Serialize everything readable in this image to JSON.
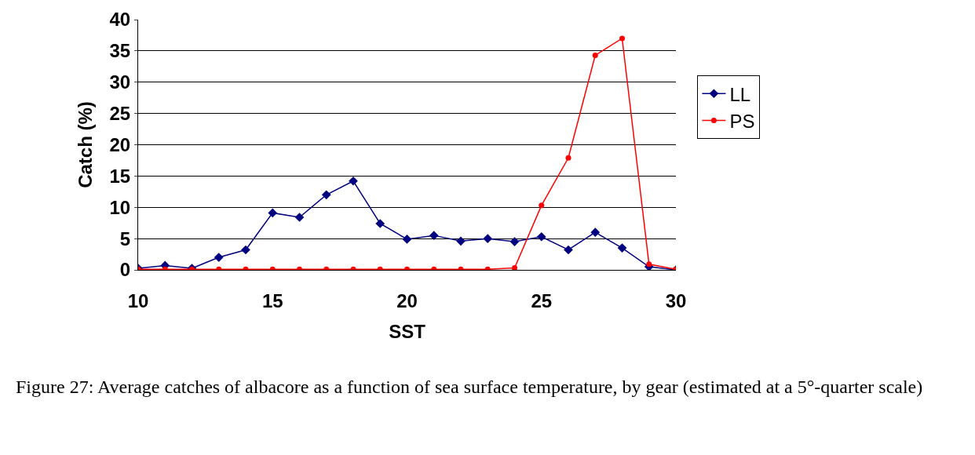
{
  "chart_data": {
    "type": "line",
    "xlabel": "SST",
    "ylabel": "Catch (%)",
    "x": [
      10,
      11,
      12,
      13,
      14,
      15,
      16,
      17,
      18,
      19,
      20,
      21,
      22,
      23,
      24,
      25,
      26,
      27,
      28,
      29,
      30
    ],
    "series": [
      {
        "name": "LL",
        "color": "#000080",
        "marker": "diamond",
        "values": [
          0.25,
          0.7,
          0.25,
          2.0,
          3.2,
          9.1,
          8.4,
          12.0,
          14.2,
          7.4,
          4.9,
          5.5,
          4.6,
          5.0,
          4.5,
          5.3,
          3.2,
          6.0,
          3.5,
          0.5,
          0
        ]
      },
      {
        "name": "PS",
        "color": "#ff0000",
        "marker": "circle",
        "values": [
          0.1,
          0.1,
          0.1,
          0.1,
          0.1,
          0.1,
          0.1,
          0.1,
          0.1,
          0.1,
          0.1,
          0.1,
          0.1,
          0.1,
          0.3,
          10.3,
          17.9,
          34.3,
          37.0,
          0.9,
          0.1
        ]
      }
    ],
    "xlim": [
      10,
      30
    ],
    "xticks": [
      10,
      15,
      20,
      25,
      30
    ],
    "ylim": [
      0,
      40
    ],
    "yticks": [
      0,
      5,
      10,
      15,
      20,
      25,
      30,
      35,
      40
    ],
    "grid": "y",
    "legend": "right",
    "line_style": "solid",
    "annotations": [
      "Figure 27: Average catches of albacore as a function of sea surface temperature, by gear (estimated at a 5°-quarter scale)"
    ]
  }
}
